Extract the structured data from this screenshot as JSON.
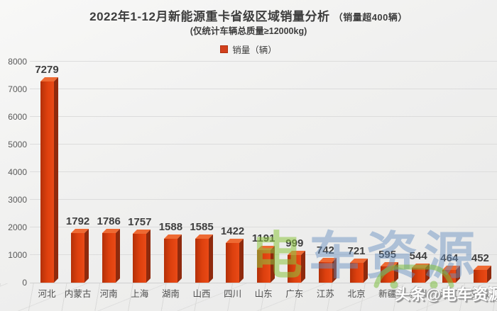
{
  "header": {
    "title": "2022年1-12月新能源重卡省级区域销量分析",
    "title_note": "（销量超400辆）",
    "subtitle": "(仅统计车辆总质量≥12000kg)"
  },
  "legend": {
    "label": "销量（辆）"
  },
  "chart_data": {
    "type": "bar",
    "title": "2022年1-12月新能源重卡省级区域销量分析（销量超400辆）",
    "subtitle": "(仅统计车辆总质量≥12000kg)",
    "series_name": "销量（辆）",
    "categories": [
      "河北",
      "内蒙古",
      "河南",
      "上海",
      "湖南",
      "山西",
      "四川",
      "山东",
      "广东",
      "江苏",
      "北京",
      "新疆",
      "贵州",
      "浙江",
      "安徽"
    ],
    "values": [
      7279,
      1792,
      1786,
      1757,
      1588,
      1585,
      1422,
      1191,
      999,
      742,
      721,
      595,
      544,
      464,
      452
    ],
    "xlabel": "",
    "ylabel": "",
    "ylim": [
      0,
      8000
    ],
    "ytick_interval": 1000,
    "grid": true,
    "legend_position": "top-center",
    "style_3d": true
  },
  "colors": {
    "bar_front": "#dd400e",
    "bar_front_dark": "#b33008",
    "bar_side": "#8f2a0d",
    "bar_top": "#ee6a33",
    "legend_swatch": "#d2401d",
    "title_text": "#3d3d3d",
    "axis_text": "#595959"
  },
  "watermarks": {
    "center_first_char": "电",
    "center_rest_chars": "车资源",
    "center_first_color": "rgba(140,197,64,0.55)",
    "center_rest_color": "rgba(105,145,193,0.48)",
    "car_icon_color": "rgba(125,190,66,0.55)",
    "corner_text": "头条@电车资源"
  }
}
